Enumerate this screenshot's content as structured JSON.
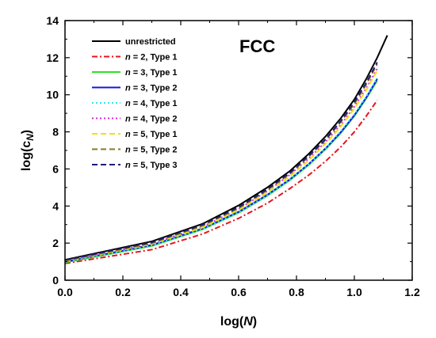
{
  "chart_data": {
    "type": "line",
    "annotation": "FCC",
    "xlabel": {
      "base": "log(",
      "var": "N",
      "close": ")"
    },
    "ylabel": {
      "base": "log(c",
      "sub": "N",
      "close": ")"
    },
    "xlim": [
      0.0,
      1.2
    ],
    "ylim": [
      0,
      14
    ],
    "xticks": [
      "0.0",
      "0.2",
      "0.4",
      "0.6",
      "0.8",
      "1.0",
      "1.2"
    ],
    "yticks": [
      "0",
      "2",
      "4",
      "6",
      "8",
      "10",
      "12",
      "14"
    ],
    "grid": false,
    "legend_position": "top-left",
    "series": [
      {
        "label": {
          "pre": "",
          "var": "",
          "post": "unrestricted"
        },
        "color": "#000000",
        "dash": "solid",
        "x": [
          0.0,
          0.301,
          0.477,
          0.602,
          0.699,
          0.778,
          0.845,
          0.903,
          0.954,
          1.0,
          1.041,
          1.079,
          1.114
        ],
        "y": [
          1.1,
          2.1,
          3.05,
          4.05,
          5.0,
          5.9,
          6.85,
          7.8,
          8.75,
          9.75,
          10.85,
          12.0,
          13.2
        ]
      },
      {
        "label": {
          "pre": "",
          "var": "n",
          "post": " = 2, Type 1"
        },
        "color": "#e8141c",
        "dash": "dashdot",
        "x": [
          0.0,
          0.301,
          0.477,
          0.602,
          0.699,
          0.778,
          0.845,
          0.903,
          0.954,
          1.0,
          1.041,
          1.079
        ],
        "y": [
          0.9,
          1.65,
          2.5,
          3.35,
          4.15,
          4.95,
          5.7,
          6.45,
          7.2,
          8.0,
          8.85,
          9.7
        ]
      },
      {
        "label": {
          "pre": "",
          "var": "n",
          "post": " = 3, Type 1"
        },
        "color": "#2ee02a",
        "dash": "solid",
        "x": [
          0.0,
          0.301,
          0.477,
          0.602,
          0.699,
          0.778,
          0.845,
          0.903,
          0.954,
          1.0,
          1.041,
          1.079
        ],
        "y": [
          0.95,
          1.85,
          2.75,
          3.65,
          4.55,
          5.4,
          6.25,
          7.1,
          7.95,
          8.85,
          9.8,
          10.75
        ]
      },
      {
        "label": {
          "pre": "",
          "var": "n",
          "post": " = 3, Type 2"
        },
        "color": "#1515e0",
        "dash": "solid",
        "x": [
          0.0,
          0.301,
          0.477,
          0.602,
          0.699,
          0.778,
          0.845,
          0.903,
          0.954,
          1.0,
          1.041,
          1.079
        ],
        "y": [
          1.0,
          1.9,
          2.8,
          3.7,
          4.6,
          5.45,
          6.3,
          7.15,
          8.0,
          8.9,
          9.85,
          10.85
        ]
      },
      {
        "label": {
          "pre": "",
          "var": "n",
          "post": " = 4, Type 1"
        },
        "color": "#33e6e6",
        "dash": "dot",
        "x": [
          0.0,
          0.301,
          0.477,
          0.602,
          0.699,
          0.778,
          0.845,
          0.903,
          0.954,
          1.0,
          1.041,
          1.079
        ],
        "y": [
          0.98,
          1.88,
          2.78,
          3.68,
          4.58,
          5.45,
          6.3,
          7.15,
          8.05,
          8.95,
          9.9,
          10.9
        ]
      },
      {
        "label": {
          "pre": "",
          "var": "n",
          "post": " = 4, Type 2"
        },
        "color": "#d62ad6",
        "dash": "dot",
        "x": [
          0.0,
          0.301,
          0.477,
          0.602,
          0.699,
          0.778,
          0.845,
          0.903,
          0.954,
          1.0,
          1.041,
          1.079
        ],
        "y": [
          1.05,
          1.98,
          2.9,
          3.85,
          4.8,
          5.7,
          6.6,
          7.5,
          8.4,
          9.35,
          10.35,
          11.4
        ]
      },
      {
        "label": {
          "pre": "",
          "var": "n",
          "post": " = 5, Type 1"
        },
        "color": "#f0e010",
        "dash": "dash",
        "x": [
          0.0,
          0.301,
          0.477,
          0.602,
          0.699,
          0.778,
          0.845,
          0.903,
          0.954,
          1.0,
          1.041,
          1.079
        ],
        "y": [
          1.02,
          1.95,
          2.85,
          3.8,
          4.72,
          5.6,
          6.5,
          7.4,
          8.3,
          9.25,
          10.25,
          11.3
        ]
      },
      {
        "label": {
          "pre": "",
          "var": "n",
          "post": " = 5, Type 2"
        },
        "color": "#8a7a1a",
        "dash": "dash",
        "x": [
          0.0,
          0.301,
          0.477,
          0.602,
          0.699,
          0.778,
          0.845,
          0.903,
          0.954,
          1.0,
          1.041,
          1.079
        ],
        "y": [
          1.05,
          2.0,
          2.95,
          3.9,
          4.85,
          5.75,
          6.7,
          7.6,
          8.55,
          9.5,
          10.55,
          11.65
        ]
      },
      {
        "label": {
          "pre": "",
          "var": "n",
          "post": " = 5, Type 3"
        },
        "color": "#1c1c78",
        "dash": "dash",
        "x": [
          0.0,
          0.301,
          0.477,
          0.602,
          0.699,
          0.778,
          0.845,
          0.903,
          0.954,
          1.0,
          1.041,
          1.079
        ],
        "y": [
          1.08,
          2.05,
          3.0,
          3.95,
          4.9,
          5.8,
          6.75,
          7.65,
          8.6,
          9.6,
          10.65,
          11.75
        ]
      }
    ]
  }
}
